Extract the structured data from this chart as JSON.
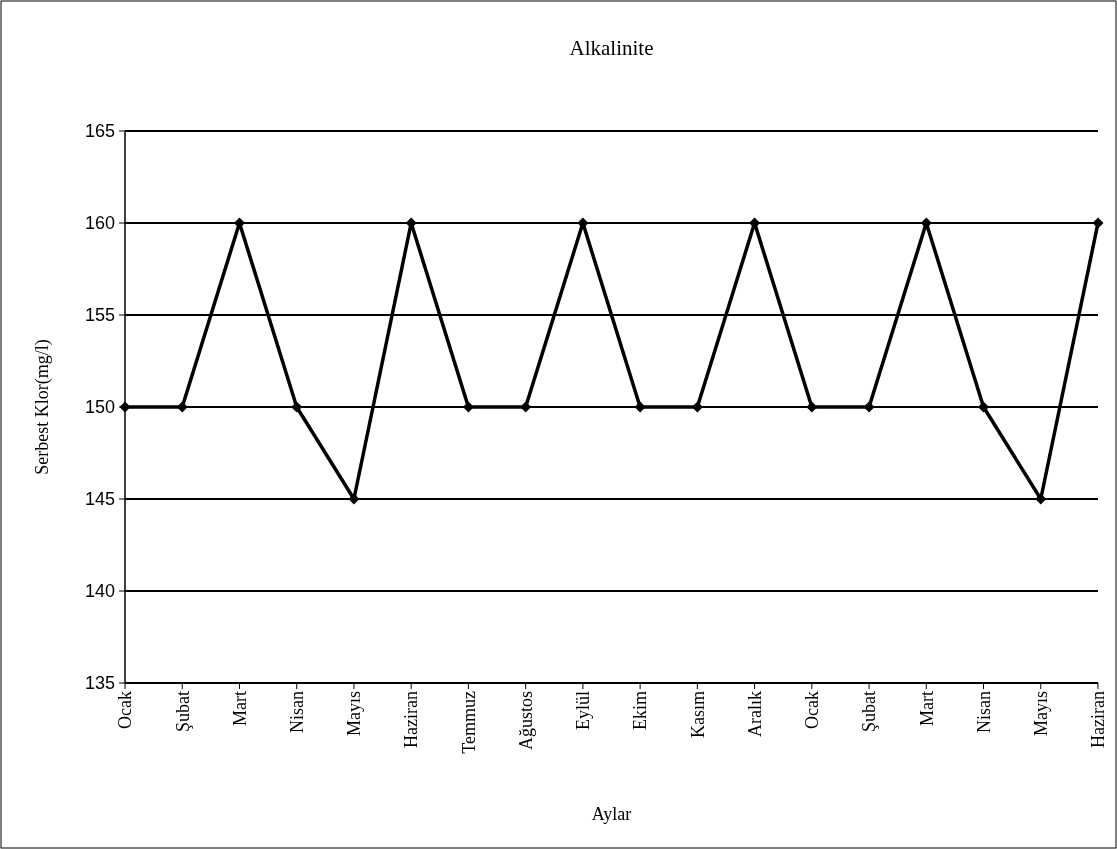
{
  "chart_data": {
    "type": "line",
    "title": "Alkalinite",
    "xlabel": "Aylar",
    "ylabel": "Serbest Klor(mg/l)",
    "categories": [
      "Ocak",
      "Şubat",
      "Mart",
      "Nisan",
      "Mayıs",
      "Haziran",
      "Temmuz",
      "Ağustos",
      "Eylül",
      "Ekim",
      "Kasım",
      "Aralık",
      "Ocak",
      "Şubat",
      "Mart",
      "Nisan",
      "Mayıs",
      "Haziran"
    ],
    "series": [
      {
        "color": "#000000",
        "values": [
          150,
          150,
          160,
          150,
          145,
          160,
          150,
          150,
          160,
          150,
          150,
          160,
          150,
          150,
          160,
          150,
          145,
          160
        ]
      }
    ],
    "ylim": [
      135,
      165
    ],
    "yticks": [
      135,
      140,
      145,
      150,
      155,
      160,
      165
    ],
    "grid": "y",
    "marker": "diamond",
    "line_style": "solid"
  }
}
